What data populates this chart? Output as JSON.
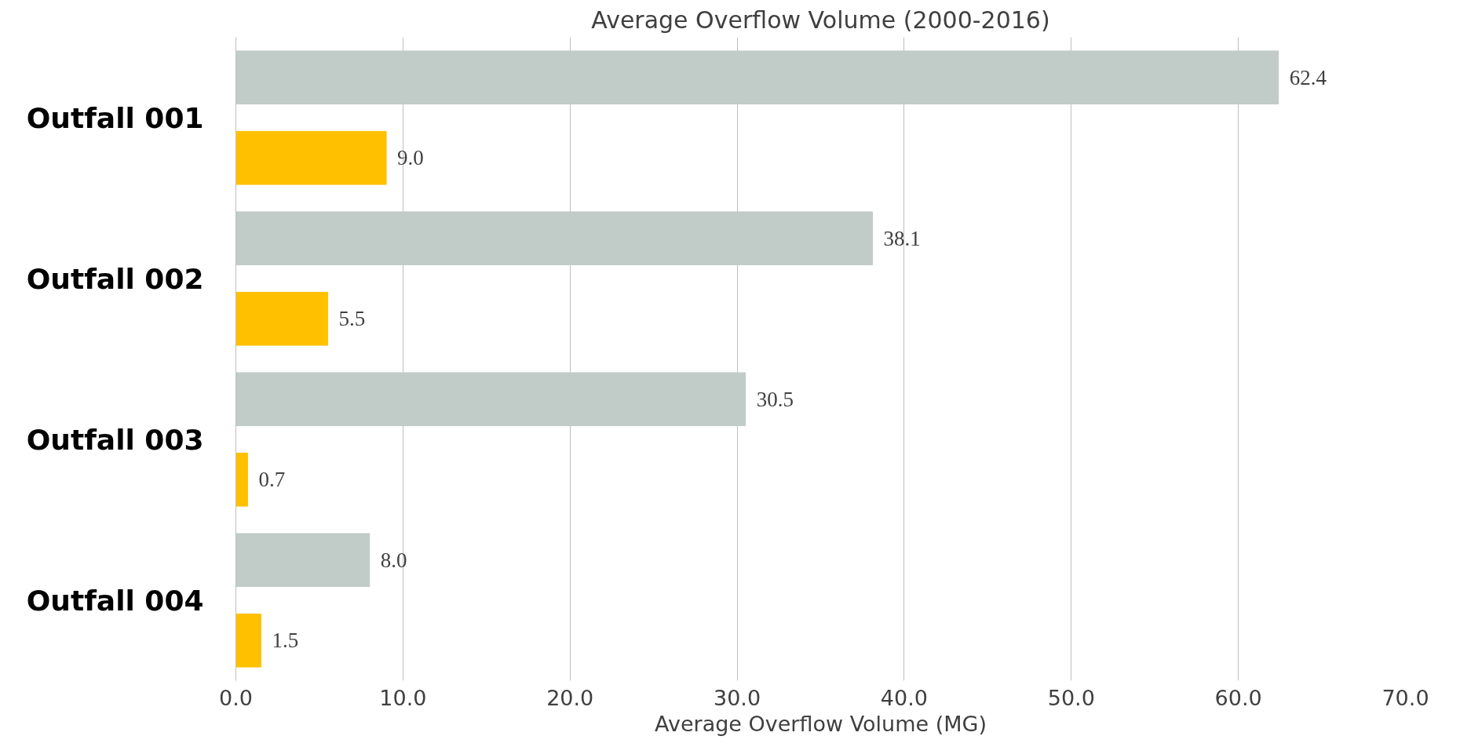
{
  "chart_data": {
    "type": "bar",
    "orientation": "horizontal",
    "title": "Average Overflow Volume (2000-2016)",
    "xlabel": "Average Overflow Volume (MG)",
    "categories": [
      "Outfall 001",
      "Outfall 002",
      "Outfall 003",
      "Outfall 004"
    ],
    "series": [
      {
        "color": "#c1cbc7",
        "values": [
          62.4,
          38.1,
          30.5,
          8.0
        ],
        "value_labels": [
          "62.4",
          "38.1",
          "30.5",
          "8.0"
        ]
      },
      {
        "color": "#ffc000",
        "values": [
          9.0,
          5.5,
          0.7,
          1.5
        ],
        "value_labels": [
          "9.0",
          "5.5",
          "0.7",
          "1.5"
        ]
      }
    ],
    "xlim": [
      0,
      70
    ],
    "xticks": [
      {
        "value": 0,
        "label": "0.0"
      },
      {
        "value": 10,
        "label": "10.0"
      },
      {
        "value": 20,
        "label": "20.0"
      },
      {
        "value": 30,
        "label": "30.0"
      },
      {
        "value": 40,
        "label": "40.0"
      },
      {
        "value": 50,
        "label": "50.0"
      },
      {
        "value": 60,
        "label": "60.0"
      },
      {
        "value": 70,
        "label": "70.0"
      }
    ],
    "grid": "x"
  }
}
